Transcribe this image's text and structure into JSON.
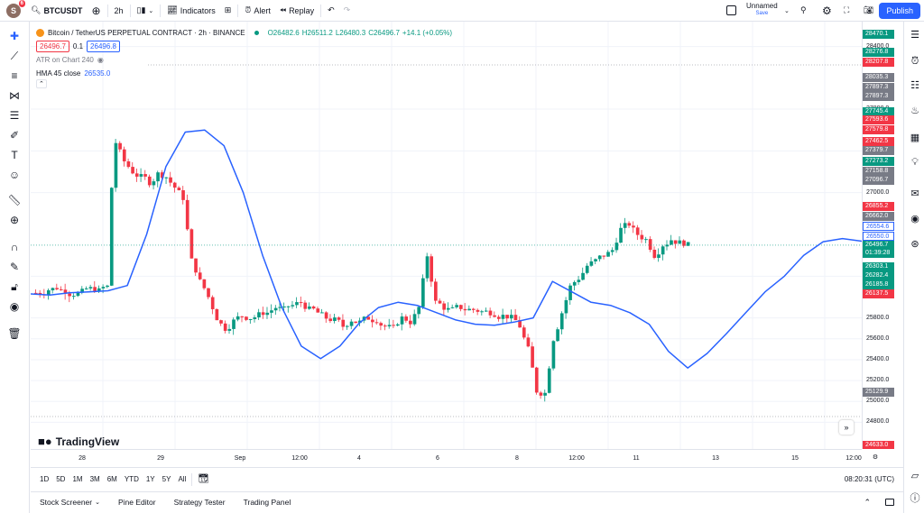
{
  "topbar": {
    "avatar_letter": "S",
    "notif_count": "6",
    "symbol": "BTCUSDT",
    "interval": "2h",
    "indicators": "Indicators",
    "alert": "Alert",
    "replay": "Replay",
    "layout_name": "Unnamed",
    "save_label": "Save",
    "publish": "Publish"
  },
  "legend": {
    "title": "Bitcoin / TetherUS PERPETUAL CONTRACT · 2h · BINANCE",
    "open": "O26482.6",
    "high": "H26511.2",
    "low": "L26480.3",
    "close": "C26496.7",
    "change": "+14.1 (+0.05%)",
    "sell_price": "26496.7",
    "spread": "0.1",
    "buy_price": "26496.8",
    "atr_label": "ATR on Chart 240",
    "hma_label": "HMA 45 close",
    "hma_value": "26535.0"
  },
  "price_axis": {
    "ticks": [
      "28400.0",
      "27800.0",
      "27400.0",
      "27000.0",
      "26200.0",
      "25800.0",
      "25600.0",
      "25400.0",
      "25200.0",
      "25000.0",
      "24800.0"
    ],
    "tags": [
      {
        "text": "28470.1",
        "color": "#089981"
      },
      {
        "text": "28276.8",
        "color": "#089981"
      },
      {
        "text": "28207.8",
        "color": "#f23645"
      },
      {
        "text": "28035.3",
        "color": "#787b86"
      },
      {
        "text": "27897.3",
        "color": "#787b86"
      },
      {
        "text": "27897.3",
        "color": "#787b86"
      },
      {
        "text": "27745.4",
        "color": "#089981"
      },
      {
        "text": "27593.6",
        "color": "#f23645"
      },
      {
        "text": "27579.8",
        "color": "#f23645"
      },
      {
        "text": "27462.5",
        "color": "#f23645"
      },
      {
        "text": "27379.7",
        "color": "#787b86"
      },
      {
        "text": "27273.2",
        "color": "#089981"
      },
      {
        "text": "27158.8",
        "color": "#787b86"
      },
      {
        "text": "27096.7",
        "color": "#787b86"
      },
      {
        "text": "26855.2",
        "color": "#f23645"
      },
      {
        "text": "26662.0",
        "color": "#787b86"
      },
      {
        "text": "26554.6",
        "color": "#2962ff"
      },
      {
        "text": "26550.0",
        "color": "#2962ff"
      },
      {
        "text": "26496.7",
        "color": "#089981"
      },
      {
        "text": "01:39:28",
        "color": "#089981"
      },
      {
        "text": "26303.1",
        "color": "#089981"
      },
      {
        "text": "26282.4",
        "color": "#089981"
      },
      {
        "text": "26185.8",
        "color": "#089981"
      },
      {
        "text": "26137.5",
        "color": "#f23645"
      },
      {
        "text": "25129.9",
        "color": "#787b86"
      },
      {
        "text": "24633.0",
        "color": "#f23645"
      }
    ]
  },
  "time_axis": [
    "28",
    "29",
    "Sep",
    "12:00",
    "4",
    "6",
    "8",
    "12:00",
    "11",
    "13",
    "15",
    "12:00"
  ],
  "bottom": {
    "ranges": [
      "1D",
      "5D",
      "1M",
      "3M",
      "6M",
      "YTD",
      "1Y",
      "5Y",
      "All"
    ],
    "clock": "08:20:31 (UTC)"
  },
  "panels": [
    "Stock Screener",
    "Pine Editor",
    "Strategy Tester",
    "Trading Panel"
  ],
  "brand": "TradingView",
  "chart_data": {
    "type": "candlestick",
    "title": "Bitcoin / TetherUS PERPETUAL CONTRACT · 2h · BINANCE",
    "x_labels": [
      "28",
      "29",
      "Sep",
      "12:00",
      "4",
      "6",
      "8",
      "12:00",
      "11",
      "13",
      "15",
      "12:00"
    ],
    "ylim": [
      24700,
      28500
    ],
    "series": [
      {
        "name": "BTCUSDT",
        "close_path": [
          26040,
          26070,
          26090,
          26060,
          26030,
          26050,
          26080,
          26060,
          26100,
          27050,
          27480,
          27300,
          27200,
          27150,
          27100,
          27180,
          27150,
          27050,
          26950,
          26350,
          26150,
          26000,
          25800,
          25700,
          25770,
          25820,
          25800,
          25830,
          25850,
          25900,
          25880,
          25920,
          25950,
          25880,
          25850,
          25800,
          25780,
          25720,
          25780,
          25760,
          25800,
          25780,
          25720,
          25700,
          25800,
          25760,
          25900,
          26400,
          25950,
          25900,
          25880,
          25900,
          25880,
          25870,
          25860,
          25840,
          25820,
          25800,
          25720,
          25500,
          25100,
          25080,
          25600,
          25850,
          26100,
          26180,
          26300,
          26350,
          26400,
          26450,
          26650,
          26700,
          26600,
          26550,
          26400,
          26500,
          26550,
          26520,
          26496.7
        ]
      },
      {
        "name": "HMA 45 close",
        "values_path": [
          26030,
          26020,
          26040,
          26050,
          26060,
          26110,
          26600,
          27250,
          27580,
          27600,
          27450,
          27000,
          26400,
          25900,
          25530,
          25410,
          25530,
          25750,
          25900,
          25950,
          25920,
          25850,
          25780,
          25740,
          25730,
          25760,
          25800,
          26150,
          26050,
          25950,
          25920,
          25850,
          25740,
          25480,
          25320,
          25460,
          25650,
          25850,
          26050,
          26200,
          26400,
          26530,
          26560,
          26535
        ]
      }
    ]
  }
}
